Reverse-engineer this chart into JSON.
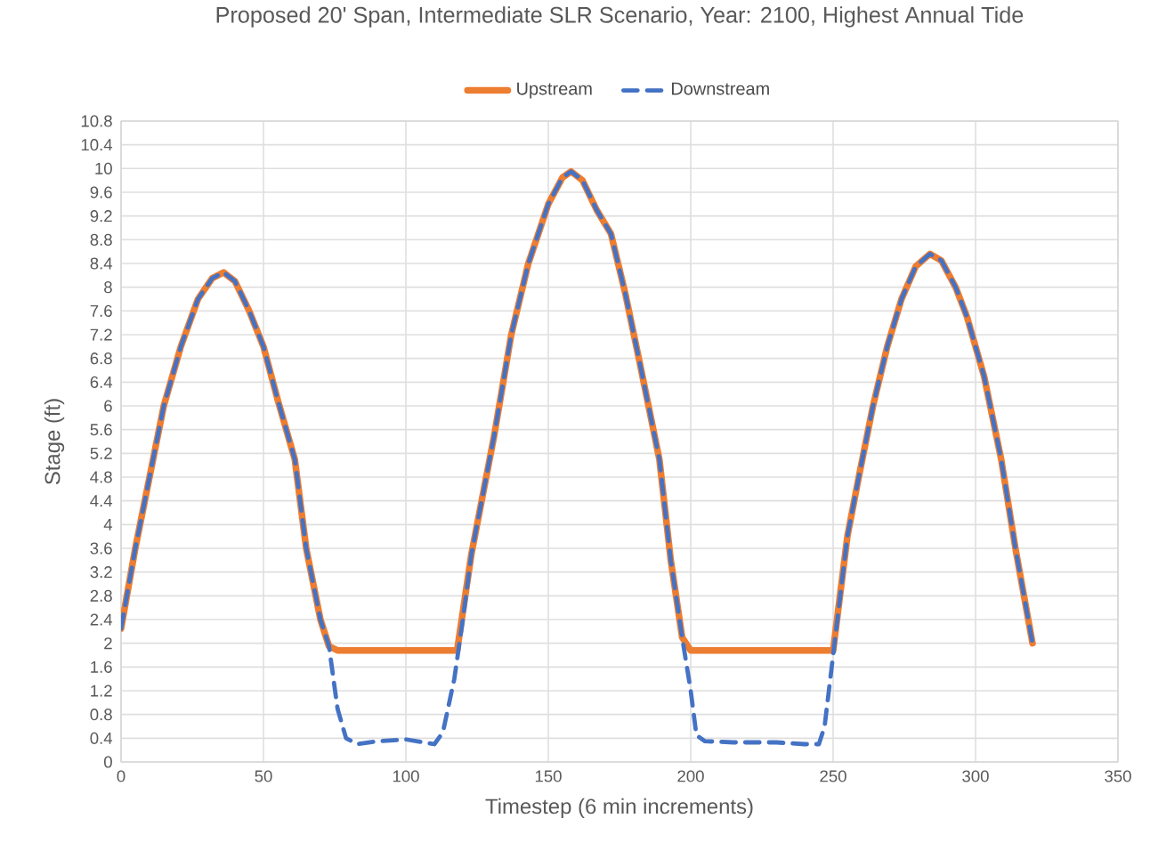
{
  "chart_data": {
    "type": "line",
    "title": "Proposed 20' Span, Intermediate SLR Scenario, Year: 2100, Highest Annual Tide",
    "xlabel": "Timestep (6 min increments)",
    "ylabel": "Stage (ft)",
    "xlim": [
      0,
      350
    ],
    "xticks": [
      0,
      50,
      100,
      150,
      200,
      250,
      300,
      350
    ],
    "ylim": [
      0,
      10.8
    ],
    "yticks": [
      0,
      0.4,
      0.8,
      1.2,
      1.6,
      2,
      2.4,
      2.8,
      3.2,
      3.6,
      4,
      4.4,
      4.8,
      5.2,
      5.6,
      6,
      6.4,
      6.8,
      7.2,
      7.6,
      8,
      8.4,
      8.8,
      9.2,
      9.6,
      10,
      10.4,
      10.8
    ],
    "grid": true,
    "legend": "top",
    "marker": "none",
    "series": [
      {
        "name": "Upstream",
        "color": "#ed7d31",
        "line_style": "solid",
        "x": [
          0,
          5,
          10,
          15,
          21,
          27,
          32,
          36,
          40,
          45,
          50,
          55,
          61,
          65,
          70,
          73,
          76,
          118,
          123,
          131,
          137,
          143,
          150,
          155,
          158,
          162,
          167,
          172,
          177,
          182,
          189,
          193,
          197,
          200,
          250,
          255,
          259,
          264,
          269,
          274,
          279,
          284,
          288,
          293,
          297,
          303,
          309,
          314,
          320
        ],
        "values": [
          2.25,
          3.6,
          4.8,
          6.0,
          7.0,
          7.8,
          8.15,
          8.25,
          8.1,
          7.6,
          7.0,
          6.1,
          5.1,
          3.6,
          2.4,
          1.95,
          1.88,
          1.88,
          3.5,
          5.5,
          7.2,
          8.4,
          9.4,
          9.85,
          9.95,
          9.8,
          9.3,
          8.9,
          7.9,
          6.75,
          5.1,
          3.4,
          2.1,
          1.88,
          1.88,
          3.8,
          4.8,
          6.0,
          7.0,
          7.8,
          8.35,
          8.56,
          8.45,
          8.0,
          7.5,
          6.5,
          5.1,
          3.6,
          2.0
        ]
      },
      {
        "name": "Downstream",
        "color": "#4472c4",
        "line_style": "dashed",
        "x": [
          0,
          5,
          10,
          15,
          21,
          27,
          32,
          36,
          40,
          45,
          50,
          55,
          61,
          65,
          70,
          73,
          76,
          79,
          83,
          90,
          100,
          110,
          113,
          117,
          120,
          123,
          131,
          137,
          143,
          150,
          155,
          158,
          162,
          167,
          172,
          177,
          182,
          189,
          193,
          197,
          200,
          202,
          205,
          215,
          230,
          240,
          245,
          247,
          250,
          255,
          259,
          264,
          269,
          274,
          279,
          284,
          288,
          293,
          297,
          303,
          309,
          314,
          320
        ],
        "values": [
          2.25,
          3.6,
          4.8,
          6.0,
          7.0,
          7.8,
          8.15,
          8.25,
          8.1,
          7.6,
          7.0,
          6.1,
          5.1,
          3.6,
          2.4,
          1.95,
          0.9,
          0.4,
          0.3,
          0.35,
          0.38,
          0.3,
          0.5,
          1.4,
          2.4,
          3.5,
          5.5,
          7.2,
          8.4,
          9.4,
          9.85,
          9.95,
          9.8,
          9.3,
          8.9,
          7.9,
          6.75,
          5.1,
          3.4,
          2.1,
          1.2,
          0.45,
          0.35,
          0.33,
          0.33,
          0.3,
          0.3,
          0.6,
          1.8,
          3.8,
          4.8,
          6.0,
          7.0,
          7.8,
          8.35,
          8.56,
          8.45,
          8.0,
          7.5,
          6.5,
          5.1,
          3.6,
          2.0
        ]
      }
    ]
  }
}
